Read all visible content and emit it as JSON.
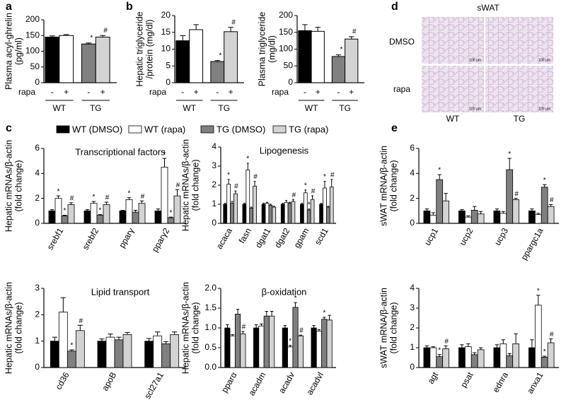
{
  "panel_labels": [
    "a",
    "b",
    "c",
    "d",
    "e"
  ],
  "image_panel": {
    "title": "sWAT",
    "rows": [
      "DMSO",
      "rapa"
    ],
    "columns": [
      "WT",
      "TG"
    ],
    "scale_label": "100 μm"
  },
  "chart_data": [
    {
      "type": "bar",
      "ylabel": [
        "Plasma acyl-ghrelin",
        "(pg/ml)"
      ],
      "ylim": [
        0,
        200
      ],
      "yticks": [
        0,
        50,
        100,
        150,
        200
      ],
      "values": [
        145,
        150,
        123,
        145
      ],
      "errors": [
        4,
        3,
        3,
        5
      ],
      "annotations": [
        null,
        null,
        "*",
        "#"
      ],
      "colors": [
        "#000000",
        "#ffffff",
        "#808080",
        "#d3d3d3"
      ],
      "x_rows": {
        "label": "rapa",
        "signs": [
          "-",
          "+",
          "-",
          "+"
        ],
        "groups": [
          "WT",
          "TG"
        ]
      }
    },
    {
      "type": "bar",
      "ylabel": [
        "Hepatic triglyceride",
        "/protein (mg/dl)"
      ],
      "ylim": [
        0,
        20
      ],
      "yticks": [
        0,
        5,
        10,
        15,
        20
      ],
      "values": [
        12.5,
        15.8,
        6.3,
        15.2
      ],
      "errors": [
        1.5,
        1.5,
        0.3,
        1.3
      ],
      "annotations": [
        null,
        null,
        "*",
        "#"
      ],
      "colors": [
        "#000000",
        "#ffffff",
        "#808080",
        "#d3d3d3"
      ],
      "x_rows": {
        "label": "rapa",
        "signs": [
          "-",
          "+",
          "-",
          "+"
        ],
        "groups": [
          "WT",
          "TG"
        ]
      }
    },
    {
      "type": "bar",
      "ylabel": [
        "Plasma triglyceride",
        "(mg/dl)"
      ],
      "ylim": [
        0,
        200
      ],
      "yticks": [
        0,
        50,
        100,
        150,
        200
      ],
      "values": [
        155,
        153,
        78,
        130
      ],
      "errors": [
        18,
        12,
        5,
        7
      ],
      "annotations": [
        null,
        null,
        "*",
        "#"
      ],
      "colors": [
        "#000000",
        "#ffffff",
        "#808080",
        "#d3d3d3"
      ],
      "x_rows": {
        "label": "rapa",
        "signs": [
          "-",
          "+",
          "-",
          "+"
        ],
        "groups": [
          "WT",
          "TG"
        ]
      }
    },
    {
      "type": "bar",
      "title": "Transcriptional factors",
      "ylabel": [
        "Hepatic mRNAs/β-actin",
        "(fold change)"
      ],
      "ylim": [
        0,
        6
      ],
      "yticks": [
        0,
        2,
        4,
        6
      ],
      "categories": [
        "srebf1",
        "srebf2",
        "pparγ",
        "pparγ2"
      ],
      "series": [
        {
          "name": "WT (DMSO)",
          "color": "#000000",
          "values": [
            1.0,
            1.0,
            1.0,
            1.0
          ],
          "errors": [
            0.1,
            0.1,
            0.05,
            0.15
          ]
        },
        {
          "name": "WT (rapa)",
          "color": "#ffffff",
          "values": [
            2.0,
            1.6,
            1.9,
            4.5
          ],
          "errors": [
            0.2,
            0.15,
            0.15,
            0.7
          ],
          "annotations": [
            "*",
            "*",
            "*",
            "*"
          ]
        },
        {
          "name": "TG (DMSO)",
          "color": "#808080",
          "values": [
            0.6,
            0.65,
            0.9,
            0.45
          ],
          "errors": [
            0.05,
            0.05,
            0.15,
            0.05
          ],
          "annotations": [
            "*",
            "*",
            null,
            "*"
          ]
        },
        {
          "name": "TG (rapa)",
          "color": "#d3d3d3",
          "values": [
            1.5,
            1.5,
            1.6,
            2.2
          ],
          "errors": [
            0.15,
            0.2,
            0.2,
            0.5
          ],
          "annotations": [
            "#",
            "#",
            "#",
            "#"
          ]
        }
      ]
    },
    {
      "type": "bar",
      "title": "Lipogenesis",
      "ylabel": [
        "Hepatic mRNAs/β-actin",
        "(fold change)"
      ],
      "ylim": [
        0,
        4
      ],
      "yticks": [
        0,
        1,
        2,
        3,
        4
      ],
      "categories": [
        "acaca",
        "fasn",
        "dgat1",
        "dgat2",
        "gpam",
        "scd1"
      ],
      "series": [
        {
          "color": "#000000",
          "values": [
            1.0,
            1.0,
            1.0,
            1.0,
            1.0,
            1.0
          ],
          "errors": [
            0.05,
            0.05,
            0.05,
            0.05,
            0.05,
            0.05
          ]
        },
        {
          "color": "#ffffff",
          "values": [
            2.05,
            2.8,
            1.05,
            1.1,
            1.6,
            1.85
          ],
          "errors": [
            0.25,
            0.35,
            0.05,
            0.1,
            0.15,
            0.35
          ],
          "annotations": [
            "*",
            "*",
            null,
            null,
            "*",
            "*"
          ]
        },
        {
          "color": "#808080",
          "values": [
            1.05,
            0.8,
            0.95,
            1.05,
            0.7,
            0.85
          ],
          "errors": [
            0.1,
            0.05,
            0.05,
            0.05,
            0.05,
            0.05
          ],
          "annotations": [
            null,
            null,
            null,
            null,
            "*",
            null
          ]
        },
        {
          "color": "#d3d3d3",
          "values": [
            1.55,
            1.95,
            0.85,
            1.15,
            1.25,
            1.9
          ],
          "errors": [
            0.15,
            0.25,
            0.05,
            0.1,
            0.2,
            0.4
          ],
          "annotations": [
            "#",
            "#",
            null,
            "#",
            "#",
            "#"
          ]
        }
      ]
    },
    {
      "type": "bar",
      "title": "Lipid transport",
      "ylabel": [
        "Hepatic mRNAs/β-actin",
        "(fold change)"
      ],
      "ylim": [
        0,
        3
      ],
      "yticks": [
        0,
        1,
        2,
        3
      ],
      "categories": [
        "cd36",
        "apoB",
        "scl27a1"
      ],
      "series": [
        {
          "color": "#000000",
          "values": [
            1.0,
            1.0,
            1.0
          ],
          "errors": [
            0.15,
            0.08,
            0.1
          ]
        },
        {
          "color": "#ffffff",
          "values": [
            2.1,
            1.15,
            1.2
          ],
          "errors": [
            0.55,
            0.12,
            0.15
          ]
        },
        {
          "color": "#808080",
          "values": [
            0.62,
            1.05,
            0.9
          ],
          "errors": [
            0.05,
            0.1,
            0.08
          ],
          "annotations": [
            "*",
            null,
            null
          ]
        },
        {
          "color": "#d3d3d3",
          "values": [
            1.4,
            1.25,
            1.25
          ],
          "errors": [
            0.2,
            0.08,
            0.1
          ],
          "annotations": [
            "#",
            null,
            null
          ]
        }
      ]
    },
    {
      "type": "bar",
      "title": "β-oxidation",
      "ylabel": [
        "Hepatic mRNAs/β-actin",
        "(fold change)"
      ],
      "ylim": [
        0,
        2
      ],
      "yticks": [
        {
          "value": 0,
          "label": "0.0"
        },
        0.5,
        {
          "value": 1,
          "label": "1.0"
        },
        1.5,
        {
          "value": 2,
          "label": "2.0"
        }
      ],
      "categories": [
        "pparα",
        "acadm",
        "acadv",
        "acadvl"
      ],
      "series": [
        {
          "color": "#000000",
          "values": [
            1.0,
            1.0,
            1.0,
            1.0
          ],
          "errors": [
            0.08,
            0.08,
            0.06,
            0.06
          ]
        },
        {
          "color": "#ffffff",
          "values": [
            0.8,
            1.05,
            0.52,
            0.92
          ],
          "errors": [
            0.03,
            0.05,
            0.04,
            0.04
          ],
          "annotations": [
            null,
            null,
            "*",
            null
          ]
        },
        {
          "color": "#808080",
          "values": [
            1.35,
            1.3,
            1.52,
            1.22
          ],
          "errors": [
            0.12,
            0.12,
            0.12,
            0.05
          ],
          "annotations": [
            null,
            null,
            "*",
            "*"
          ]
        },
        {
          "color": "#d3d3d3",
          "values": [
            0.85,
            1.3,
            0.8,
            1.2
          ],
          "errors": [
            0.06,
            0.12,
            0.02,
            0.12
          ],
          "annotations": [
            "#",
            null,
            "#",
            null
          ]
        }
      ]
    },
    {
      "type": "bar",
      "ylabel": [
        "sWAT mRNA/β-actin",
        "(fold change)"
      ],
      "ylim": [
        0,
        6
      ],
      "yticks": [
        0,
        2,
        4,
        6
      ],
      "categories": [
        "ucp1",
        "ucp2",
        "ucp3",
        "ppargc1a"
      ],
      "series": [
        {
          "color": "#000000",
          "values": [
            1.0,
            1.0,
            1.0,
            1.0
          ],
          "errors": [
            0.15,
            0.1,
            0.15,
            0.15
          ]
        },
        {
          "color": "#ffffff",
          "values": [
            0.65,
            0.5,
            0.8,
            0.7
          ],
          "errors": [
            0.2,
            0.1,
            0.15,
            0.1
          ]
        },
        {
          "color": "#808080",
          "values": [
            3.5,
            1.05,
            4.3,
            2.9
          ],
          "errors": [
            0.4,
            0.3,
            0.9,
            0.2
          ],
          "annotations": [
            "*",
            null,
            "*",
            "*"
          ]
        },
        {
          "color": "#d3d3d3",
          "values": [
            1.8,
            0.75,
            1.9,
            1.35
          ],
          "errors": [
            0.6,
            0.2,
            0.1,
            0.15
          ],
          "annotations": [
            null,
            null,
            "#",
            "#"
          ]
        }
      ]
    },
    {
      "type": "bar",
      "ylabel": [
        "sWAT mRNA/β-actin",
        "(fold change)"
      ],
      "ylim": [
        0,
        4
      ],
      "yticks": [
        0,
        1,
        2,
        3,
        4
      ],
      "categories": [
        "agt",
        "psat",
        "ednra",
        "anxa1"
      ],
      "series": [
        {
          "color": "#000000",
          "values": [
            1.0,
            1.0,
            1.0,
            1.0
          ],
          "errors": [
            0.1,
            0.15,
            0.15,
            0.4
          ]
        },
        {
          "color": "#ffffff",
          "values": [
            1.0,
            1.05,
            1.2,
            3.15
          ],
          "errors": [
            0.05,
            0.15,
            0.2,
            0.5
          ],
          "annotations": [
            null,
            null,
            null,
            "*"
          ]
        },
        {
          "color": "#808080",
          "values": [
            0.55,
            0.65,
            0.6,
            0.52
          ],
          "errors": [
            0.1,
            0.1,
            0.1,
            0.05
          ],
          "annotations": [
            "*",
            null,
            null,
            "*"
          ]
        },
        {
          "color": "#d3d3d3",
          "values": [
            0.95,
            0.9,
            1.2,
            1.25
          ],
          "errors": [
            0.15,
            0.1,
            0.5,
            0.2
          ],
          "annotations": [
            "#",
            null,
            null,
            "#"
          ]
        }
      ]
    }
  ]
}
